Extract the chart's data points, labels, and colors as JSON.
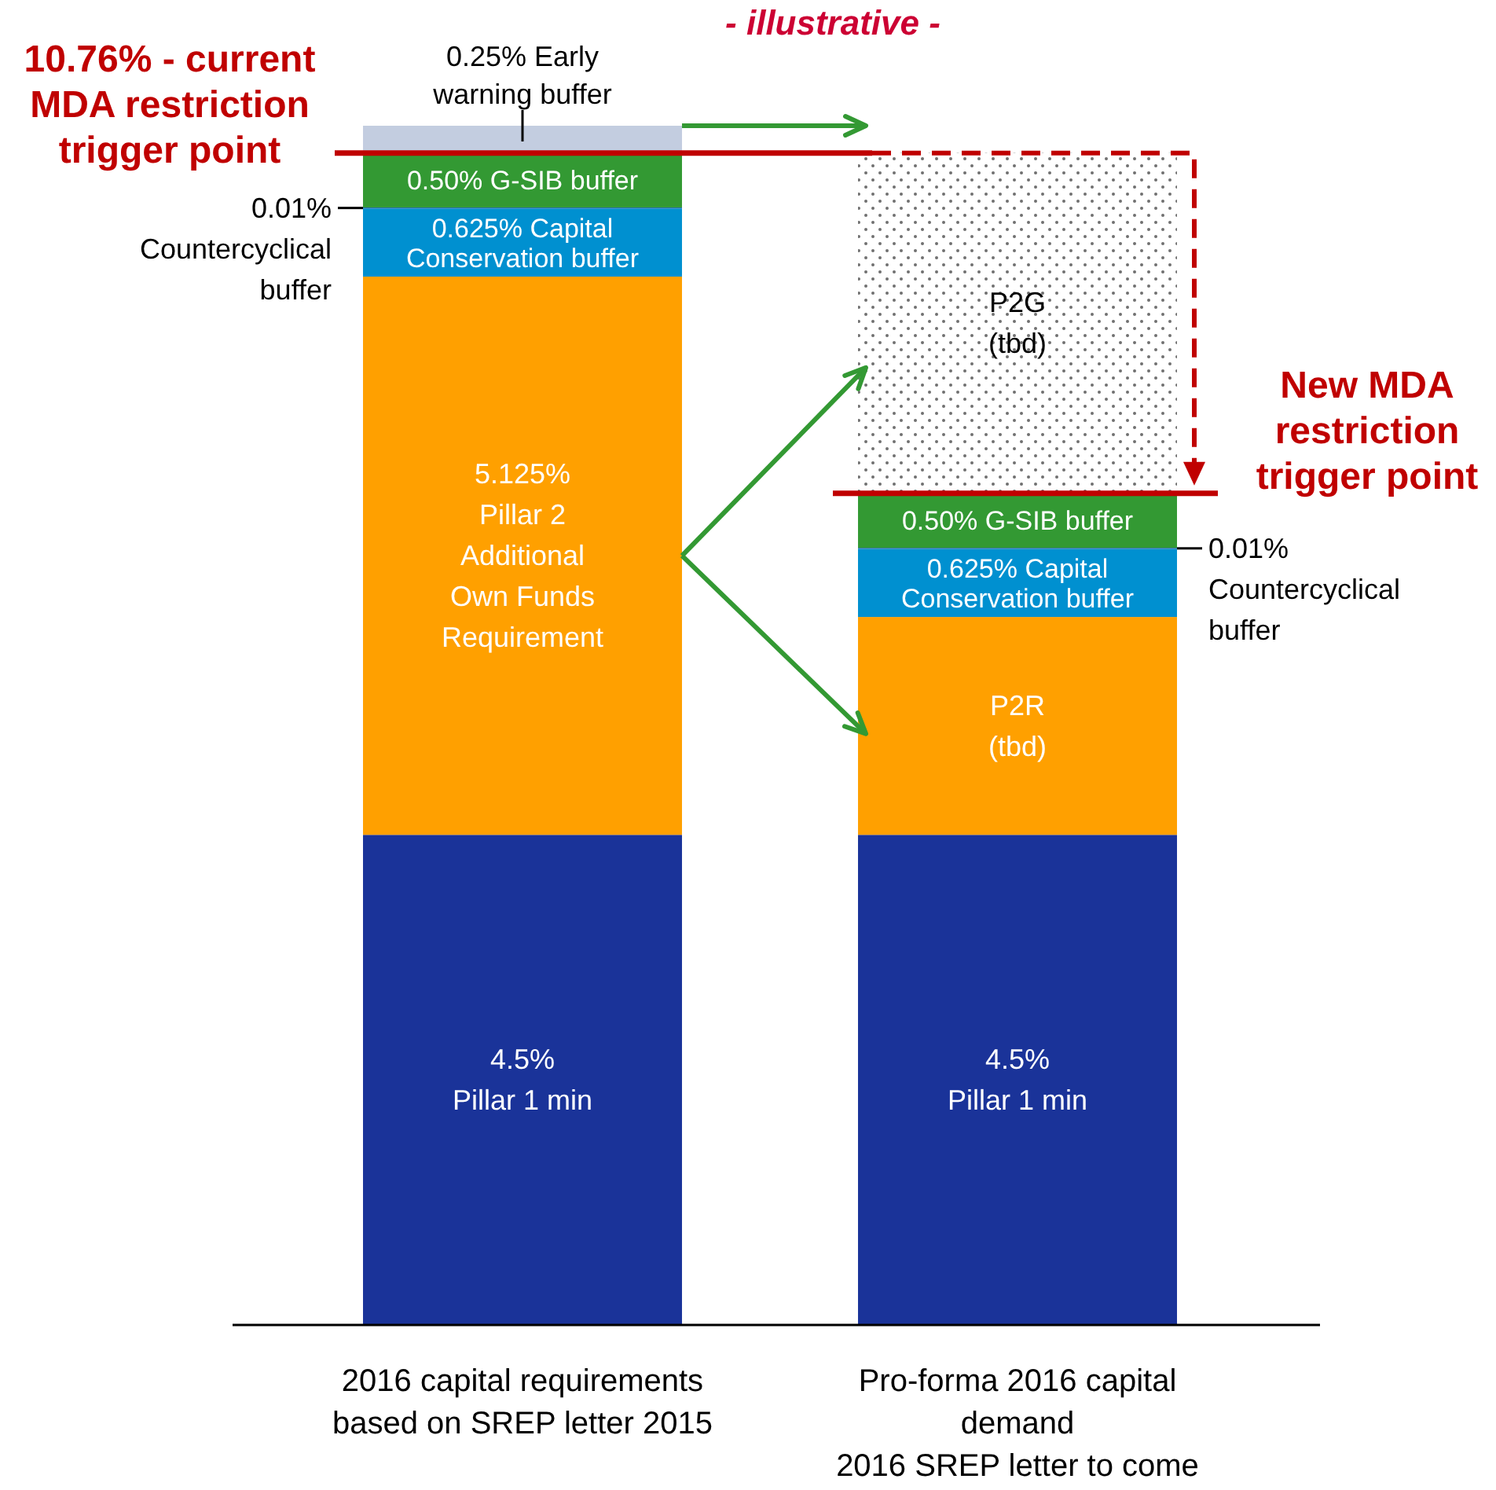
{
  "chart_data": {
    "type": "bar",
    "stacked": true,
    "title": "- illustrative -",
    "categories": [
      "2016 capital requirements\nbased on SREP letter 2015",
      "Pro-forma 2016 capital\ndemand\n2016 SREP letter to come"
    ],
    "series": [
      {
        "color": "#1a3399",
        "values": [
          4.5,
          4.5
        ],
        "value_labels": [
          "4.5%\nPillar 1 min",
          "4.5%\nPillar 1 min"
        ]
      },
      {
        "color": "#ffa000",
        "values": [
          5.125,
          2.0
        ],
        "value_labels": [
          "5.125%\nPillar 2\nAdditional\nOwn Funds\nRequirement",
          "P2R\n(tbd)"
        ]
      },
      {
        "color": "#0090d0",
        "values": [
          0.625,
          0.625
        ],
        "value_labels": [
          "0.625% Capital\nConservation buffer",
          "0.625% Capital\nConservation buffer"
        ]
      },
      {
        "color": "#1f6fa8",
        "values": [
          0.01,
          0.01
        ],
        "value_labels": [
          "0.01%\nCountercyclical\nbuffer",
          "0.01%\nCountercyclical\nbuffer"
        ]
      },
      {
        "color": "#339933",
        "values": [
          0.5,
          0.5
        ],
        "value_labels": [
          "0.50% G-SIB buffer",
          "0.50% G-SIB buffer"
        ]
      },
      {
        "color": "#c3cde0",
        "values": [
          0.25,
          null
        ],
        "value_labels": [
          "0.25% Early\nwarning buffer",
          null
        ]
      },
      {
        "color": "#707070",
        "values": [
          null,
          3.125
        ],
        "value_labels": [
          null,
          "P2G\n(tbd)"
        ]
      }
    ],
    "ref_lines": [
      {
        "axis": "y",
        "value": 10.76,
        "label": "10.76% - current\nMDA restriction\ntrigger point",
        "color": "#c00000"
      },
      {
        "axis": "y",
        "value": 7.635,
        "label": "New MDA\nrestriction\ntrigger point",
        "color": "#c00000"
      }
    ]
  }
}
